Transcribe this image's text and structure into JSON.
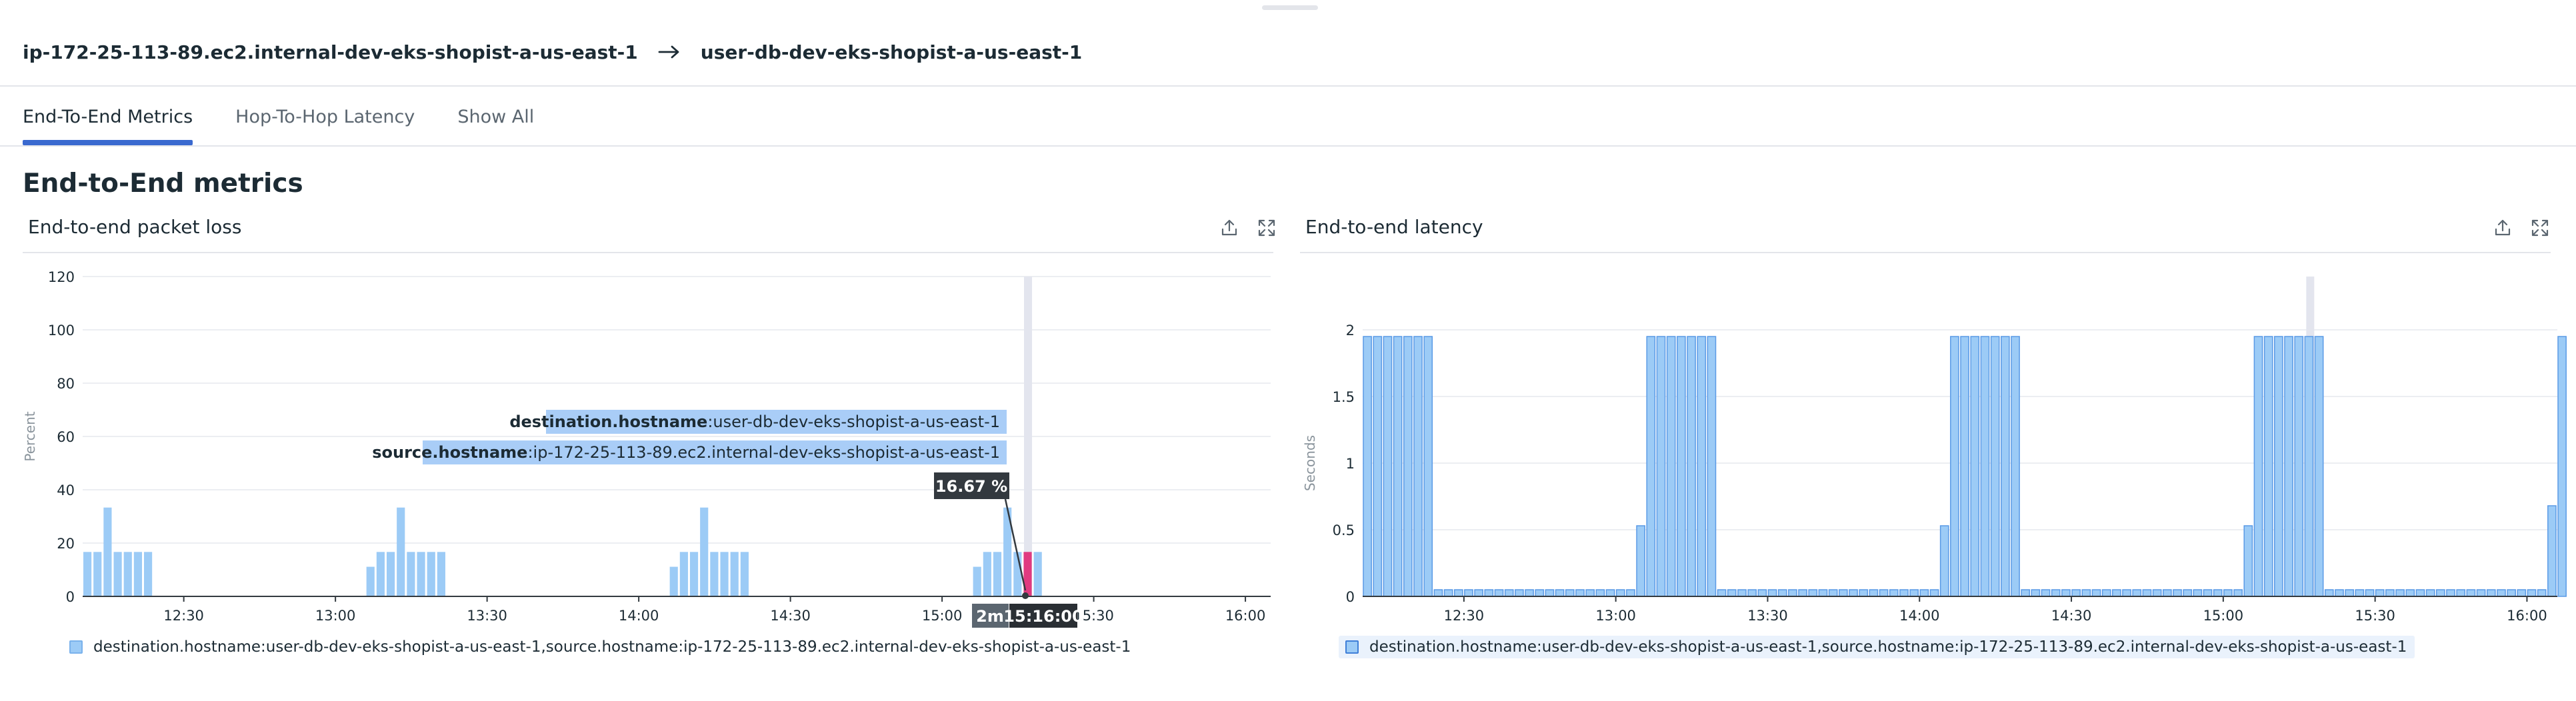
{
  "header": {
    "source_host": "ip-172-25-113-89.ec2.internal-dev-eks-shopist-a-us-east-1",
    "destination_host": "user-db-dev-eks-shopist-a-us-east-1",
    "arrow_icon": "arrow-right-icon"
  },
  "tabs": [
    {
      "label": "End-To-End Metrics",
      "active": true
    },
    {
      "label": "Hop-To-Hop Latency",
      "active": false
    },
    {
      "label": "Show All",
      "active": false
    }
  ],
  "section_title": "End-to-End metrics",
  "widgets": {
    "packet_loss": {
      "title": "End-to-end packet loss",
      "export_icon": "export-icon",
      "expand_icon": "expand-icon",
      "legend": "destination.hostname:user-db-dev-eks-shopist-a-us-east-1,source.hostname:ip-172-25-113-89.ec2.internal-dev-eks-shopist-a-us-east-1",
      "tooltip": {
        "dest_key": "destination.hostname",
        "dest_value": ":user-db-dev-eks-shopist-a-us-east-1",
        "src_key": "source.hostname",
        "src_value": ":ip-172-25-113-89.ec2.internal-dev-eks-shopist-a-us-east-1",
        "value": "16.67 %",
        "interval": "2m",
        "time": "15:16:00"
      }
    },
    "latency": {
      "title": "End-to-end latency",
      "export_icon": "export-icon",
      "expand_icon": "expand-icon",
      "legend": "destination.hostname:user-db-dev-eks-shopist-a-us-east-1,source.hostname:ip-172-25-113-89.ec2.internal-dev-eks-shopist-a-us-east-1"
    }
  },
  "colors": {
    "bar_fill": "#9ccbf6",
    "bar_stroke": "#5a9ae6",
    "highlight": "#e03a80",
    "active_tab": "#3a69cf",
    "cursor": "#e3e5ee"
  },
  "chart_data": [
    {
      "type": "bar",
      "title": "End-to-end packet loss",
      "ylabel": "Percent",
      "ylim": [
        0,
        120
      ],
      "yticks": [
        "120",
        "100",
        "80",
        "60",
        "40",
        "20",
        "0"
      ],
      "x_range": [
        "12:10",
        "16:05"
      ],
      "xticks": [
        {
          "label": "12:30",
          "t": 12.5
        },
        {
          "label": "13:00",
          "t": 13.0
        },
        {
          "label": "13:30",
          "t": 13.5
        },
        {
          "label": "14:00",
          "t": 14.0
        },
        {
          "label": "14:30",
          "t": 14.5
        },
        {
          "label": "15:00",
          "t": 15.0
        },
        {
          "label": "15:30",
          "t": 15.5
        },
        {
          "label": "16:00",
          "t": 16.0
        }
      ],
      "grid": true,
      "legend_position": "bottom",
      "highlight_time": "15:16",
      "series": [
        {
          "name": "destination.hostname:user-db-dev-eks-shopist-a-us-east-1,source.hostname:ip-172-25-113-89.ec2.internal-dev-eks-shopist-a-us-east-1",
          "points": [
            [
              "12:10",
              16.67
            ],
            [
              "12:12",
              16.67
            ],
            [
              "12:14",
              33.33
            ],
            [
              "12:16",
              16.67
            ],
            [
              "12:18",
              16.67
            ],
            [
              "12:20",
              16.67
            ],
            [
              "12:22",
              16.67
            ],
            [
              "13:06",
              11.11
            ],
            [
              "13:08",
              16.67
            ],
            [
              "13:10",
              16.67
            ],
            [
              "13:12",
              33.33
            ],
            [
              "13:14",
              16.67
            ],
            [
              "13:16",
              16.67
            ],
            [
              "13:18",
              16.67
            ],
            [
              "13:20",
              16.67
            ],
            [
              "14:06",
              11.11
            ],
            [
              "14:08",
              16.67
            ],
            [
              "14:10",
              16.67
            ],
            [
              "14:12",
              33.33
            ],
            [
              "14:14",
              16.67
            ],
            [
              "14:16",
              16.67
            ],
            [
              "14:18",
              16.67
            ],
            [
              "14:20",
              16.67
            ],
            [
              "15:06",
              11.11
            ],
            [
              "15:08",
              16.67
            ],
            [
              "15:10",
              16.67
            ],
            [
              "15:12",
              33.33
            ],
            [
              "15:14",
              16.67
            ],
            [
              "15:16",
              16.67
            ],
            [
              "15:18",
              16.67
            ]
          ]
        }
      ]
    },
    {
      "type": "bar",
      "title": "End-to-end latency",
      "ylabel": "Seconds",
      "ylim": [
        0,
        2
      ],
      "yticks": [
        "2",
        "1.5",
        "1",
        "0.5",
        "0"
      ],
      "x_range": [
        "12:10",
        "16:06"
      ],
      "xticks": [
        {
          "label": "12:30",
          "t": 12.5
        },
        {
          "label": "13:00",
          "t": 13.0
        },
        {
          "label": "13:30",
          "t": 13.5
        },
        {
          "label": "14:00",
          "t": 14.0
        },
        {
          "label": "14:30",
          "t": 14.5
        },
        {
          "label": "15:00",
          "t": 15.0
        },
        {
          "label": "15:30",
          "t": 15.5
        },
        {
          "label": "16:00",
          "t": 16.0
        }
      ],
      "grid": true,
      "legend_position": "bottom",
      "series": [
        {
          "name": "destination.hostname:user-db-dev-eks-shopist-a-us-east-1,source.hostname:ip-172-25-113-89.ec2.internal-dev-eks-shopist-a-us-east-1",
          "bars": [
            {
              "start": "12:10",
              "end": "12:24",
              "value": 1.95
            },
            {
              "start": "12:24",
              "end": "13:04",
              "value": 0.05
            },
            {
              "start": "13:04",
              "end": "13:06",
              "value": 0.53
            },
            {
              "start": "13:06",
              "end": "13:20",
              "value": 1.95
            },
            {
              "start": "13:20",
              "end": "14:04",
              "value": 0.05
            },
            {
              "start": "14:04",
              "end": "14:06",
              "value": 0.53
            },
            {
              "start": "14:06",
              "end": "14:20",
              "value": 1.95
            },
            {
              "start": "14:20",
              "end": "15:04",
              "value": 0.05
            },
            {
              "start": "15:04",
              "end": "15:06",
              "value": 0.53
            },
            {
              "start": "15:06",
              "end": "15:20",
              "value": 1.95
            },
            {
              "start": "15:20",
              "end": "16:04",
              "value": 0.05
            },
            {
              "start": "16:04",
              "end": "16:06",
              "value": 0.68
            },
            {
              "start": "16:06",
              "end": "16:07",
              "value": 1.95
            }
          ]
        }
      ]
    }
  ]
}
